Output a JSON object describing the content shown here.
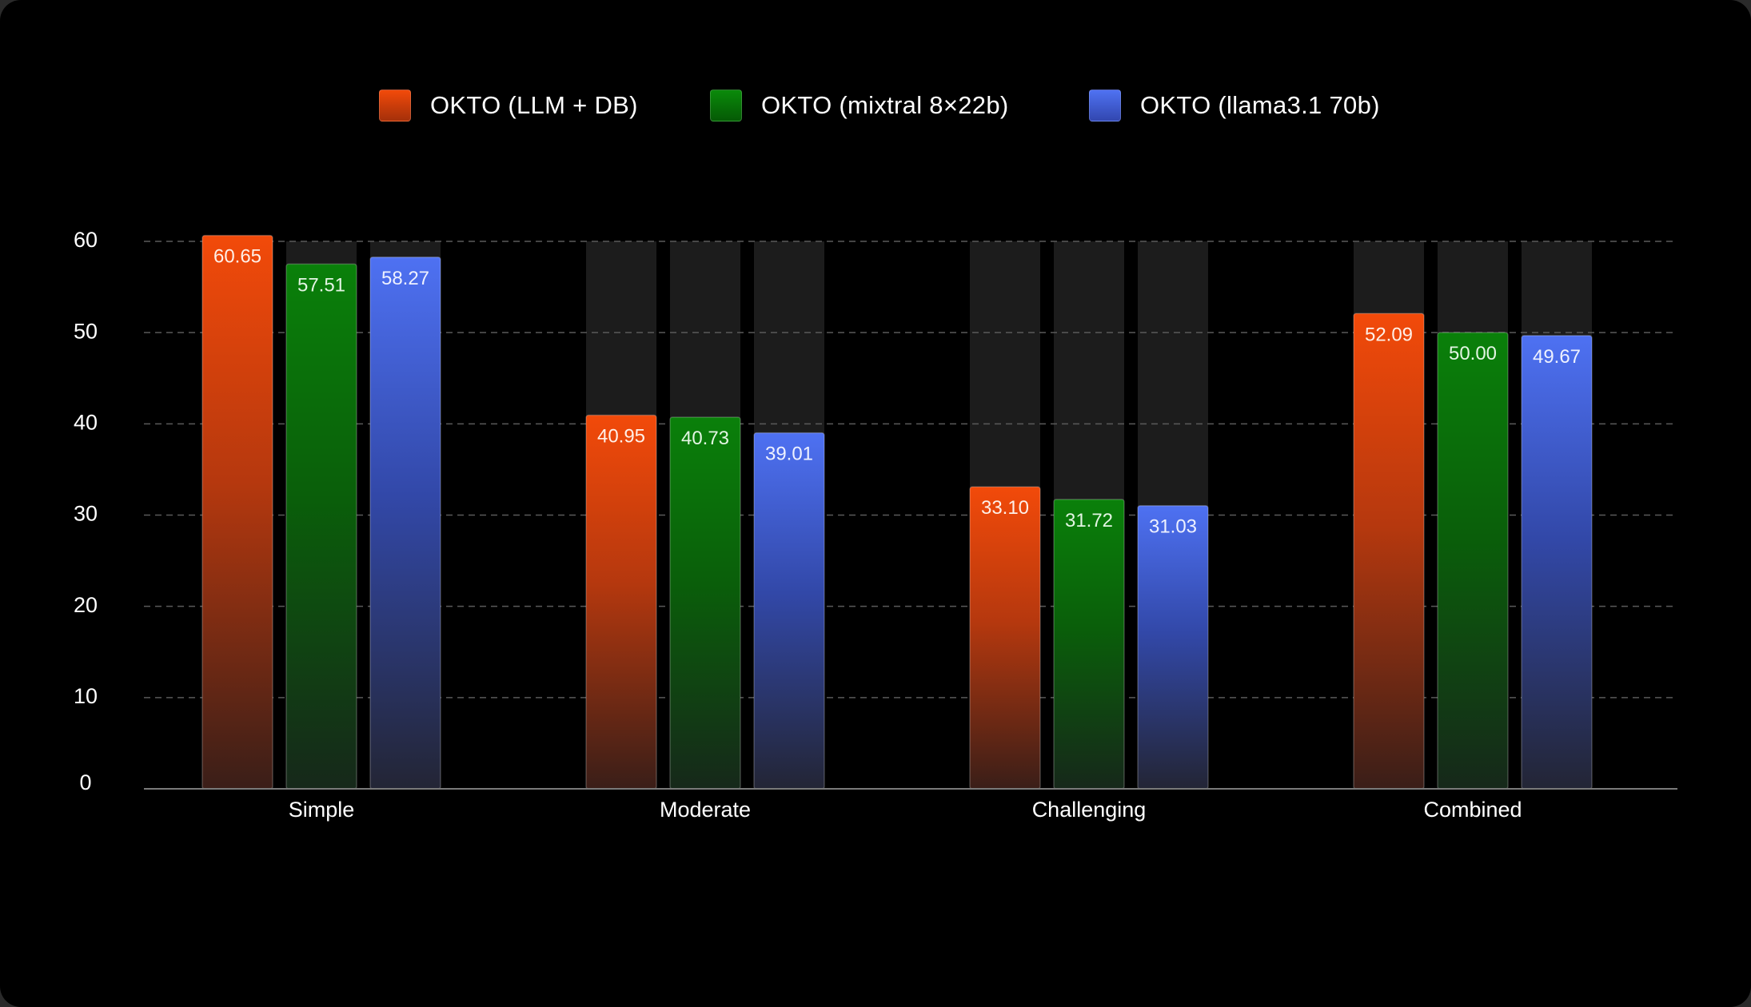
{
  "chart_data": {
    "type": "bar",
    "title": "",
    "xlabel": "",
    "ylabel": "",
    "ylim": [
      0,
      60
    ],
    "yticks": [
      0,
      10,
      20,
      30,
      40,
      50,
      60
    ],
    "ytick_labels": [
      "0",
      "10",
      "20",
      "30",
      "40",
      "50",
      "60"
    ],
    "grid": true,
    "legend_position": "top-center",
    "categories": [
      "Simple",
      "Moderate",
      "Challenging",
      "Combined"
    ],
    "series": [
      {
        "name": "OKTO (LLM + DB)",
        "color": "#f24a0a",
        "values": [
          60.65,
          40.95,
          33.1,
          52.09
        ],
        "value_labels": [
          "60.65",
          "40.95",
          "33.10",
          "52.09"
        ]
      },
      {
        "name": "OKTO (mixtral 8×22b)",
        "color": "#0a7f0a",
        "values": [
          57.51,
          40.73,
          31.72,
          50.0
        ],
        "value_labels": [
          "57.51",
          "40.73",
          "31.72",
          "50.00"
        ]
      },
      {
        "name": "OKTO (llama3.1 70b)",
        "color": "#4a6ff0",
        "values": [
          58.27,
          39.01,
          31.03,
          49.67
        ],
        "value_labels": [
          "58.27",
          "39.01",
          "31.03",
          "49.67"
        ]
      }
    ]
  }
}
